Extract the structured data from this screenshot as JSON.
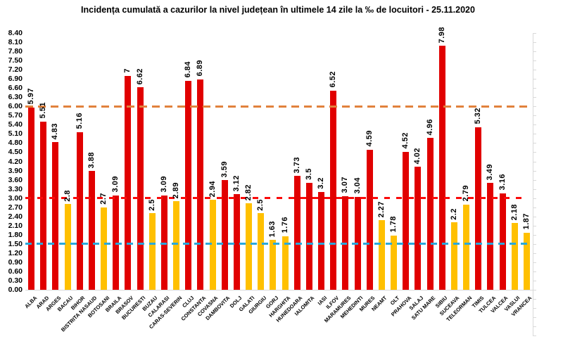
{
  "title": "Incidența cumulată a cazurilor la nivel județean în ultimele 14 zile la ‰ de locuitori - 25.11.2020",
  "palette": {
    "red_bar": "#e10000",
    "yellow_bar": "#ffc000",
    "axis_gray": "#d9d9d9",
    "text": "#000000"
  },
  "y_axis": {
    "min": 0,
    "max": 8.4,
    "step": 0.3,
    "tick_labels": [
      "8.40",
      "8.10",
      "7.80",
      "7.50",
      "7.20",
      "6.90",
      "6.60",
      "6.30",
      "6.00",
      "5.70",
      "5.40",
      "5.10",
      "4.80",
      "4.50",
      "4.20",
      "3.90",
      "3.60",
      "3.30",
      "3.00",
      "2.70",
      "2.40",
      "2.10",
      "1.80",
      "1.50",
      "1.20",
      "0.90",
      "0.60",
      "0.30",
      "0.00"
    ]
  },
  "chart_data": {
    "type": "bar",
    "title": "Incidența cumulată a cazurilor la nivel județean în ultimele 14 zile la ‰ de locuitori - 25.11.2020",
    "xlabel": "",
    "ylabel": "",
    "ylim": [
      0,
      8.4
    ],
    "grid": false,
    "legend": "none",
    "categories": [
      "ALBA",
      "ARAD",
      "ARGES",
      "BACAU",
      "BIHOR",
      "BISTRITA NASAUD",
      "BOTOSANI",
      "BRAILA",
      "BRASOV",
      "BUCURESTI",
      "BUZAU",
      "CALARASI",
      "CARAS-SEVERIN",
      "CLUJ",
      "CONSTANTA",
      "COVASNA",
      "DAMBOVITA",
      "DOLJ",
      "GALATI",
      "GIURGIU",
      "GORJ",
      "HARGHITA",
      "HUNEDOARA",
      "IALOMITA",
      "IASI",
      "ILFOV",
      "MARAMURES",
      "MEHEDINTI",
      "MURES",
      "NEAMT",
      "OLT",
      "PRAHOVA",
      "SALAJ",
      "SATU MARE",
      "SIBIU",
      "SUCEAVA",
      "TELEORMAN",
      "TIMIS",
      "TULCEA",
      "VALCEA",
      "VASLUI",
      "VRANCEA"
    ],
    "values": [
      5.97,
      5.51,
      4.83,
      2.8,
      5.16,
      3.88,
      2.7,
      3.09,
      7,
      6.62,
      2.5,
      3.09,
      2.89,
      6.84,
      6.89,
      2.94,
      3.59,
      3.12,
      2.82,
      2.5,
      1.63,
      1.76,
      3.73,
      3.5,
      3.2,
      6.52,
      3.07,
      3.04,
      4.59,
      2.27,
      1.78,
      4.52,
      4.02,
      4.96,
      7.98,
      2.2,
      2.79,
      5.32,
      3.49,
      3.16,
      2.18,
      1.87
    ],
    "value_labels": [
      "5.97",
      "5.51",
      "4.83",
      "2.8",
      "5.16",
      "3.88",
      "2.7",
      "3.09",
      "7",
      "6.62",
      "2.5",
      "3.09",
      "2.89",
      "6.84",
      "6.89",
      "2.94",
      "3.59",
      "3.12",
      "2.82",
      "2.5",
      "1.63",
      "1.76",
      "3.73",
      "3.5",
      "3.2",
      "6.52",
      "3.07",
      "3.04",
      "4.59",
      "2.27",
      "1.78",
      "4.52",
      "4.02",
      "4.96",
      "7.98",
      "2.2",
      "2.79",
      "5.32",
      "3.49",
      "3.16",
      "2.18",
      "1.87"
    ],
    "bar_colors": [
      "red",
      "red",
      "red",
      "yellow",
      "red",
      "red",
      "yellow",
      "red",
      "red",
      "red",
      "yellow",
      "red",
      "yellow",
      "red",
      "red",
      "yellow",
      "red",
      "red",
      "yellow",
      "yellow",
      "yellow",
      "yellow",
      "red",
      "red",
      "red",
      "red",
      "red",
      "red",
      "red",
      "yellow",
      "yellow",
      "red",
      "red",
      "red",
      "red",
      "yellow",
      "yellow",
      "red",
      "red",
      "red",
      "yellow",
      "yellow"
    ],
    "threshold_lines": [
      {
        "name": "orange-dashed-line",
        "value": 6.0,
        "color": "#e1813c",
        "dash": [
          11,
          7
        ]
      },
      {
        "name": "red-dashed-line",
        "value": 3.0,
        "color": "#fa0b0b",
        "dash": [
          8,
          9
        ]
      },
      {
        "name": "blue-dashed-line",
        "value": 1.5,
        "color": "#29a8dc",
        "dash": [
          9,
          7
        ]
      }
    ]
  }
}
